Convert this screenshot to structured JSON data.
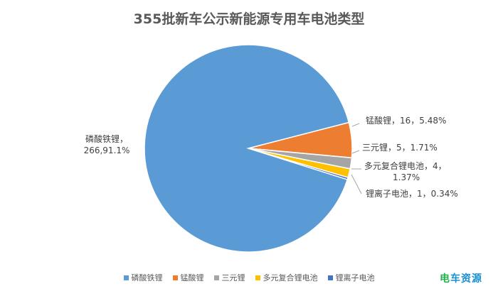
{
  "chart_data": {
    "type": "pie",
    "title": "355批新车公示新能源专用车电池类型",
    "slices": [
      {
        "name": "磷酸铁锂",
        "value": 266,
        "percent": "91.1%",
        "label": "磷酸铁锂，\n266,91.1%",
        "color": "#5b9bd5"
      },
      {
        "name": "锰酸锂",
        "value": 16,
        "percent": "5.48%",
        "label": "锰酸锂，16，5.48%",
        "color": "#ed7d31"
      },
      {
        "name": "三元锂",
        "value": 5,
        "percent": "1.71%",
        "label": "三元锂，5，1.71%",
        "color": "#a5a5a5"
      },
      {
        "name": "多元复合锂电池",
        "value": 4,
        "percent": "1.37%",
        "label": "多元复合锂电池，4，\n1.37%",
        "color": "#ffc000"
      },
      {
        "name": "锂离子电池",
        "value": 1,
        "percent": "0.34%",
        "label": "锂离子电池，1，0.34%",
        "color": "#4472c4"
      }
    ],
    "legend_position": "bottom"
  },
  "watermark": {
    "part1": "电",
    "part2": "车资源"
  }
}
